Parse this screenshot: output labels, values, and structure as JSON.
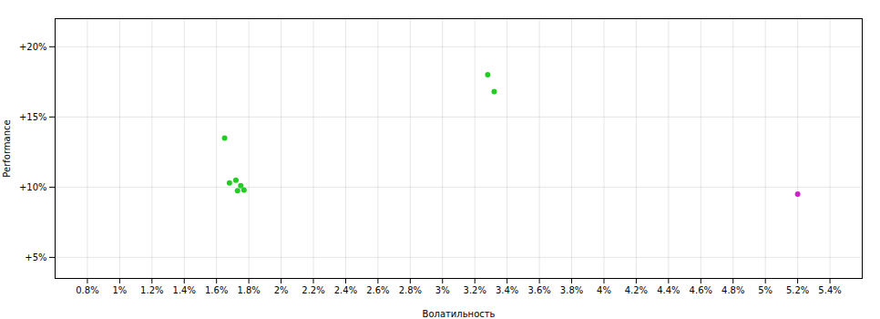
{
  "chart_data": {
    "type": "scatter",
    "xlabel": "Волатильность",
    "ylabel": "Performance",
    "xlim": [
      0.6,
      5.6
    ],
    "ylim": [
      3.5,
      22.0
    ],
    "xticks": [
      {
        "value": 0.8,
        "label": "0.8%"
      },
      {
        "value": 1.0,
        "label": "1%"
      },
      {
        "value": 1.2,
        "label": "1.2%"
      },
      {
        "value": 1.4,
        "label": "1.4%"
      },
      {
        "value": 1.6,
        "label": "1.6%"
      },
      {
        "value": 1.8,
        "label": "1.8%"
      },
      {
        "value": 2.0,
        "label": "2%"
      },
      {
        "value": 2.2,
        "label": "2.2%"
      },
      {
        "value": 2.4,
        "label": "2.4%"
      },
      {
        "value": 2.6,
        "label": "2.6%"
      },
      {
        "value": 2.8,
        "label": "2.8%"
      },
      {
        "value": 3.0,
        "label": "3%"
      },
      {
        "value": 3.2,
        "label": "3.2%"
      },
      {
        "value": 3.4,
        "label": "3.4%"
      },
      {
        "value": 3.6,
        "label": "3.6%"
      },
      {
        "value": 3.8,
        "label": "3.8%"
      },
      {
        "value": 4.0,
        "label": "4%"
      },
      {
        "value": 4.2,
        "label": "4.2%"
      },
      {
        "value": 4.4,
        "label": "4.4%"
      },
      {
        "value": 4.6,
        "label": "4.6%"
      },
      {
        "value": 4.8,
        "label": "4.8%"
      },
      {
        "value": 5.0,
        "label": "5%"
      },
      {
        "value": 5.2,
        "label": "5.2%"
      },
      {
        "value": 5.4,
        "label": "5.4%"
      }
    ],
    "yticks": [
      {
        "value": 5,
        "label": "+5%"
      },
      {
        "value": 10,
        "label": "+10%"
      },
      {
        "value": 15,
        "label": "+15%"
      },
      {
        "value": 20,
        "label": "+20%"
      }
    ],
    "grid": true,
    "series": [
      {
        "color": "#22cc22",
        "x": [
          1.65,
          1.68,
          1.72,
          1.75,
          1.77,
          1.73,
          3.28,
          3.32
        ],
        "values": [
          13.5,
          10.3,
          10.5,
          10.1,
          9.8,
          9.75,
          18.0,
          16.8
        ]
      },
      {
        "color": "#cc22cc",
        "x": [
          5.2
        ],
        "values": [
          9.5
        ]
      }
    ]
  }
}
